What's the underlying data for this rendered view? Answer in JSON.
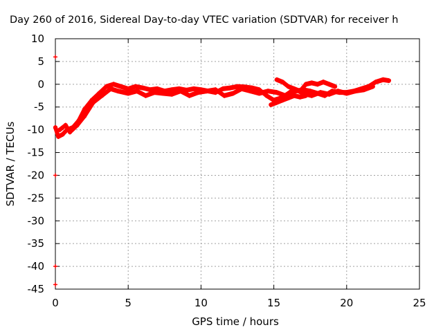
{
  "chart_data": {
    "type": "scatter",
    "title": "Day 260 of 2016, Sidereal Day-to-day VTEC variation (SDTVAR) for receiver h",
    "xlabel": "GPS time / hours",
    "ylabel": "SDTVAR / TECUs",
    "xlim": [
      0,
      25
    ],
    "ylim": [
      -45,
      10
    ],
    "x_ticks": [
      0,
      5,
      10,
      15,
      20,
      25
    ],
    "y_ticks": [
      10,
      5,
      0,
      -5,
      -10,
      -15,
      -20,
      -25,
      -30,
      -35,
      -40,
      -45
    ],
    "grid": true,
    "series_color": "#ff0000",
    "series": [
      {
        "x": [
          0.0,
          0.2,
          0.5,
          0.8,
          1.2,
          1.6,
          2.0,
          2.5,
          3.0,
          3.5,
          4.0,
          4.5,
          5.0,
          5.5,
          6.0,
          6.5,
          7.0,
          7.5,
          8.0,
          8.5,
          9.0,
          9.5,
          10.0,
          10.5,
          11.0,
          11.5,
          12.0,
          12.5,
          13.0,
          13.5,
          14.0,
          14.5,
          15.0,
          15.5,
          16.0,
          16.5,
          17.0,
          17.5,
          18.0,
          18.5,
          19.0,
          19.5,
          20.0,
          20.5,
          21.0,
          21.5,
          22.0,
          22.5,
          22.9
        ],
        "y": [
          -9.5,
          -11.5,
          -11.0,
          -10.0,
          -9.5,
          -8.0,
          -5.5,
          -3.5,
          -2.0,
          -0.5,
          0.0,
          -0.5,
          -1.0,
          -0.5,
          -0.8,
          -1.2,
          -1.0,
          -1.5,
          -1.2,
          -1.0,
          -1.3,
          -1.0,
          -1.2,
          -1.5,
          -1.8,
          -1.0,
          -0.8,
          -0.5,
          -0.6,
          -0.8,
          -1.2,
          -2.5,
          -3.5,
          -3.0,
          -2.0,
          -1.5,
          -1.2,
          -1.5,
          -2.0,
          -2.5,
          -1.5,
          -1.8,
          -1.8,
          -1.5,
          -1.0,
          -0.5,
          0.5,
          1.0,
          0.8
        ]
      },
      {
        "x": [
          0.3,
          0.7,
          1.0,
          1.5,
          2.0,
          2.6,
          3.2,
          3.8,
          4.3,
          5.0,
          5.6,
          6.2,
          6.8,
          7.4,
          8.0,
          8.6,
          9.2,
          9.8,
          10.4,
          11.0,
          11.6,
          12.2,
          12.8,
          13.4,
          14.0,
          14.6,
          15.2,
          15.8,
          16.4,
          17.0,
          17.6,
          18.2,
          18.8,
          19.4,
          20.0,
          20.6,
          21.2,
          21.8
        ],
        "y": [
          -10.0,
          -9.0,
          -10.5,
          -9.0,
          -7.0,
          -4.0,
          -2.5,
          -1.0,
          -1.5,
          -2.0,
          -1.5,
          -2.5,
          -1.8,
          -2.0,
          -2.2,
          -1.5,
          -2.5,
          -1.8,
          -1.5,
          -1.2,
          -2.5,
          -2.0,
          -1.0,
          -1.5,
          -2.0,
          -1.5,
          -1.8,
          -2.5,
          -1.0,
          -2.0,
          -2.5,
          -1.8,
          -2.2,
          -1.5,
          -2.0,
          -1.5,
          -1.2,
          -0.5
        ]
      },
      {
        "x": [
          15.2,
          15.6,
          16.0,
          16.4,
          16.8,
          17.2,
          17.6,
          18.0,
          18.4,
          18.8,
          19.2
        ],
        "y": [
          1.0,
          0.5,
          -0.5,
          -1.0,
          -1.5,
          0.0,
          0.3,
          0.0,
          0.5,
          0.0,
          -0.5
        ]
      },
      {
        "x": [
          14.8,
          15.2,
          15.6,
          16.0,
          16.4,
          16.8,
          17.2
        ],
        "y": [
          -4.5,
          -4.0,
          -3.5,
          -3.0,
          -2.5,
          -2.8,
          -2.5
        ]
      }
    ],
    "edge_markers": {
      "x": 0,
      "y": [
        6,
        -20,
        -40,
        -44
      ]
    }
  }
}
